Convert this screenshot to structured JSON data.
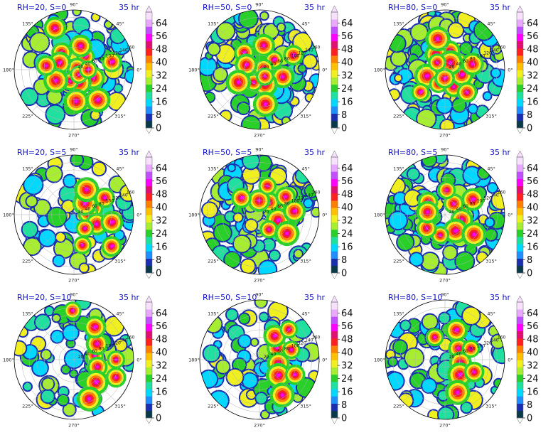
{
  "figure": {
    "lead_time": "35 hr"
  },
  "colors": {
    "title_color": "#1010c8",
    "colormap": [
      "#0a3a4a",
      "#1a2fb0",
      "#1f8fff",
      "#00d8ff",
      "#20e0a0",
      "#2ad02a",
      "#a8ee30",
      "#f0f020",
      "#ffc000",
      "#ff8000",
      "#ff2020",
      "#e01070",
      "#ff00ff",
      "#c050ff",
      "#e8a8ff",
      "#f8e0ff"
    ]
  },
  "chart_data": [
    {
      "type": "heatmap",
      "projection": "polar",
      "title": "RH=20, S=0",
      "subtitle": "35 hr",
      "hotspots": [
        [
          0.85,
          50
        ],
        [
          0.5,
          10
        ],
        [
          -0.4,
          60
        ],
        [
          -1.2,
          40
        ],
        [
          -1.9,
          35
        ],
        [
          2.2,
          60
        ],
        [
          2.7,
          45
        ],
        [
          -2.6,
          60
        ],
        [
          -0.8,
          20
        ],
        [
          0.2,
          110
        ],
        [
          1.3,
          70
        ],
        [
          -1.5,
          90
        ],
        [
          0.0,
          40
        ],
        [
          3.0,
          80
        ],
        [
          2.0,
          130
        ],
        [
          -0.9,
          110
        ]
      ],
      "coverage": 0.55,
      "angular_ticks": [
        "90°",
        "45°",
        "0°",
        "315°",
        "270°",
        "225°",
        "180°",
        "135°"
      ],
      "radial_ticks": [
        "20",
        "40",
        "60",
        "80",
        "100",
        "120",
        "140",
        "160"
      ],
      "colorbar": {
        "ticks": [
          "0",
          "8",
          "16",
          "24",
          "32",
          "40",
          "48",
          "56",
          "64"
        ],
        "vmin": 0,
        "vmax": 64
      }
    },
    {
      "type": "heatmap",
      "projection": "polar",
      "title": "RH=50, S=0",
      "subtitle": "35 hr",
      "hotspots": [
        [
          0.6,
          50
        ],
        [
          0.2,
          12
        ],
        [
          -0.3,
          70
        ],
        [
          -1.2,
          45
        ],
        [
          -2.0,
          40
        ],
        [
          2.3,
          65
        ],
        [
          2.8,
          40
        ],
        [
          -2.6,
          70
        ],
        [
          -0.9,
          25
        ],
        [
          0.4,
          105
        ],
        [
          1.4,
          70
        ],
        [
          -1.4,
          100
        ]
      ],
      "coverage": 0.82,
      "angular_ticks": [
        "90°",
        "45°",
        "0°",
        "315°",
        "270°",
        "225°",
        "180°",
        "135°"
      ],
      "radial_ticks": [
        "20",
        "40",
        "60",
        "80",
        "100",
        "120",
        "140",
        "160"
      ],
      "colorbar": {
        "ticks": [
          "0",
          "8",
          "16",
          "24",
          "32",
          "40",
          "48",
          "56",
          "64"
        ],
        "vmin": 0,
        "vmax": 64
      }
    },
    {
      "type": "heatmap",
      "projection": "polar",
      "title": "RH=80, S=0",
      "subtitle": "35 hr",
      "hotspots": [
        [
          0.5,
          45
        ],
        [
          1.3,
          55
        ],
        [
          2.1,
          50
        ],
        [
          -2.8,
          55
        ],
        [
          -2.0,
          45
        ],
        [
          -1.1,
          55
        ],
        [
          -0.3,
          50
        ],
        [
          0.9,
          25
        ],
        [
          2.4,
          30
        ],
        [
          -1.6,
          25
        ],
        [
          0.2,
          80
        ],
        [
          1.8,
          90
        ],
        [
          -2.4,
          95
        ],
        [
          -0.8,
          90
        ]
      ],
      "coverage": 0.95,
      "angular_ticks": [
        "90°",
        "45°",
        "0°",
        "315°",
        "270°",
        "225°",
        "180°",
        "135°"
      ],
      "radial_ticks": [
        "20",
        "40",
        "60",
        "80",
        "100",
        "120",
        "140",
        "160"
      ],
      "colorbar": {
        "ticks": [
          "0",
          "8",
          "16",
          "24",
          "32",
          "40",
          "48",
          "56",
          "64"
        ],
        "vmin": 0,
        "vmax": 64
      }
    },
    {
      "type": "heatmap",
      "projection": "polar",
      "title": "RH=20, S=5",
      "subtitle": "35 hr",
      "hotspots": [
        [
          0.3,
          60
        ],
        [
          0.1,
          40
        ],
        [
          -0.4,
          70
        ],
        [
          0.8,
          45
        ],
        [
          -0.9,
          50
        ],
        [
          0.5,
          100
        ],
        [
          -0.2,
          110
        ],
        [
          1.1,
          80
        ],
        [
          -1.3,
          90
        ],
        [
          -0.7,
          140
        ]
      ],
      "coverage": 0.5,
      "angular_ticks": [
        "90°",
        "45°",
        "0°",
        "315°",
        "270°",
        "225°",
        "180°",
        "135°"
      ],
      "radial_ticks": [
        "20",
        "40",
        "60",
        "80",
        "100",
        "120",
        "140",
        "160"
      ],
      "colorbar": {
        "ticks": [
          "0",
          "8",
          "16",
          "24",
          "32",
          "40",
          "48",
          "56",
          "64"
        ],
        "vmin": 0,
        "vmax": 64
      }
    },
    {
      "type": "heatmap",
      "projection": "polar",
      "title": "RH=50, S=5",
      "subtitle": "35 hr",
      "hotspots": [
        [
          0.3,
          50
        ],
        [
          0.9,
          45
        ],
        [
          1.6,
          40
        ],
        [
          -0.3,
          55
        ],
        [
          -1.0,
          50
        ],
        [
          0.6,
          90
        ],
        [
          0.1,
          100
        ],
        [
          -0.6,
          95
        ],
        [
          1.3,
          85
        ],
        [
          2.4,
          70
        ]
      ],
      "coverage": 0.72,
      "angular_ticks": [
        "90°",
        "45°",
        "0°",
        "315°",
        "270°",
        "225°",
        "180°",
        "135°"
      ],
      "radial_ticks": [
        "20",
        "40",
        "60",
        "80",
        "100",
        "120",
        "140",
        "160"
      ],
      "colorbar": {
        "ticks": [
          "0",
          "8",
          "16",
          "24",
          "32",
          "40",
          "48",
          "56",
          "64"
        ],
        "vmin": 0,
        "vmax": 64
      }
    },
    {
      "type": "heatmap",
      "projection": "polar",
      "title": "RH=80, S=5",
      "subtitle": "35 hr",
      "hotspots": [
        [
          0.3,
          45
        ],
        [
          0.9,
          40
        ],
        [
          -0.3,
          50
        ],
        [
          -1.0,
          55
        ],
        [
          -1.8,
          60
        ],
        [
          -2.5,
          65
        ],
        [
          0.5,
          90
        ],
        [
          -0.6,
          100
        ],
        [
          1.5,
          70
        ],
        [
          2.5,
          60
        ],
        [
          3.0,
          50
        ]
      ],
      "coverage": 0.85,
      "angular_ticks": [
        "90°",
        "45°",
        "0°",
        "315°",
        "270°",
        "225°",
        "180°",
        "135°"
      ],
      "radial_ticks": [
        "20",
        "40",
        "60",
        "80",
        "100",
        "120",
        "140",
        "160"
      ],
      "colorbar": {
        "ticks": [
          "0",
          "8",
          "16",
          "24",
          "32",
          "40",
          "48",
          "56",
          "64"
        ],
        "vmin": 0,
        "vmax": 64
      }
    },
    {
      "type": "heatmap",
      "projection": "polar",
      "title": "RH=20, S=10",
      "subtitle": "35 hr",
      "hotspots": [
        [
          0.2,
          60
        ],
        [
          -0.3,
          70
        ],
        [
          0.6,
          80
        ],
        [
          -0.8,
          90
        ],
        [
          0.0,
          120
        ],
        [
          -0.4,
          130
        ],
        [
          1.0,
          110
        ],
        [
          -1.2,
          120
        ],
        [
          1.6,
          140
        ]
      ],
      "coverage": 0.45,
      "angular_ticks": [
        "90°",
        "45°",
        "0°",
        "315°",
        "270°",
        "225°",
        "180°",
        "135°"
      ],
      "radial_ticks": [
        "20",
        "40",
        "60",
        "80",
        "100",
        "120",
        "140",
        "160"
      ],
      "colorbar": {
        "ticks": [
          "0",
          "8",
          "16",
          "24",
          "32",
          "40",
          "48",
          "56",
          "64"
        ],
        "vmin": 0,
        "vmax": 64
      }
    },
    {
      "type": "heatmap",
      "projection": "polar",
      "title": "RH=50, S=10",
      "subtitle": "35 hr",
      "hotspots": [
        [
          0.2,
          50
        ],
        [
          0.6,
          60
        ],
        [
          -0.2,
          55
        ],
        [
          -0.7,
          70
        ],
        [
          0.3,
          95
        ],
        [
          -0.4,
          110
        ],
        [
          1.0,
          80
        ],
        [
          -1.0,
          120
        ],
        [
          0.8,
          120
        ]
      ],
      "coverage": 0.55,
      "angular_ticks": [
        "90°",
        "45°",
        "0°",
        "315°",
        "270°",
        "225°",
        "180°",
        "135°"
      ],
      "radial_ticks": [
        "20",
        "40",
        "60",
        "80",
        "100",
        "120",
        "140",
        "160"
      ],
      "colorbar": {
        "ticks": [
          "0",
          "8",
          "16",
          "24",
          "32",
          "40",
          "48",
          "56",
          "64"
        ],
        "vmin": 0,
        "vmax": 64
      }
    },
    {
      "type": "heatmap",
      "projection": "polar",
      "title": "RH=80, S=10",
      "subtitle": "35 hr",
      "hotspots": [
        [
          0.2,
          40
        ],
        [
          0.7,
          50
        ],
        [
          -0.2,
          45
        ],
        [
          -0.8,
          60
        ],
        [
          0.4,
          80
        ],
        [
          -0.4,
          90
        ],
        [
          1.2,
          90
        ],
        [
          -1.2,
          100
        ],
        [
          2.0,
          70
        ]
      ],
      "coverage": 0.55,
      "angular_ticks": [
        "90°",
        "45°",
        "0°",
        "315°",
        "270°",
        "225°",
        "180°",
        "135°"
      ],
      "radial_ticks": [
        "20",
        "40",
        "60",
        "80",
        "100",
        "120",
        "140",
        "160"
      ],
      "colorbar": {
        "ticks": [
          "0",
          "8",
          "16",
          "24",
          "32",
          "40",
          "48",
          "56",
          "64"
        ],
        "vmin": 0,
        "vmax": 64
      }
    }
  ]
}
